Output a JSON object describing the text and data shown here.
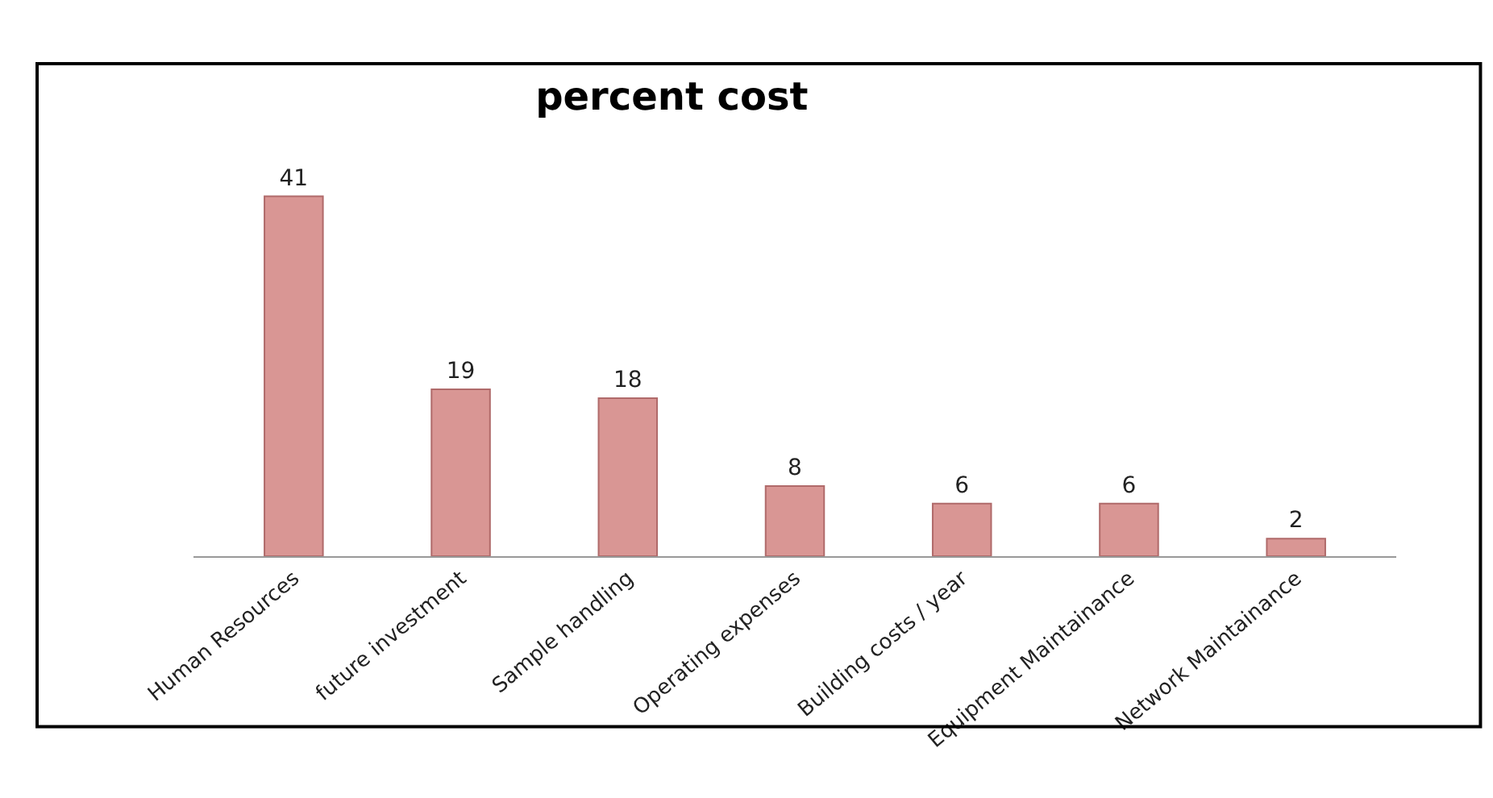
{
  "chart_data": {
    "type": "bar",
    "title": "percent cost",
    "categories": [
      "Human Resources",
      "future investment",
      "Sample handling",
      "Operating expenses",
      "Building costs / year",
      "Equipment Maintainance",
      "Network Maintainance"
    ],
    "values": [
      41,
      19,
      18,
      8,
      6,
      6,
      2
    ],
    "color": "#d99694",
    "data_labels": true
  }
}
